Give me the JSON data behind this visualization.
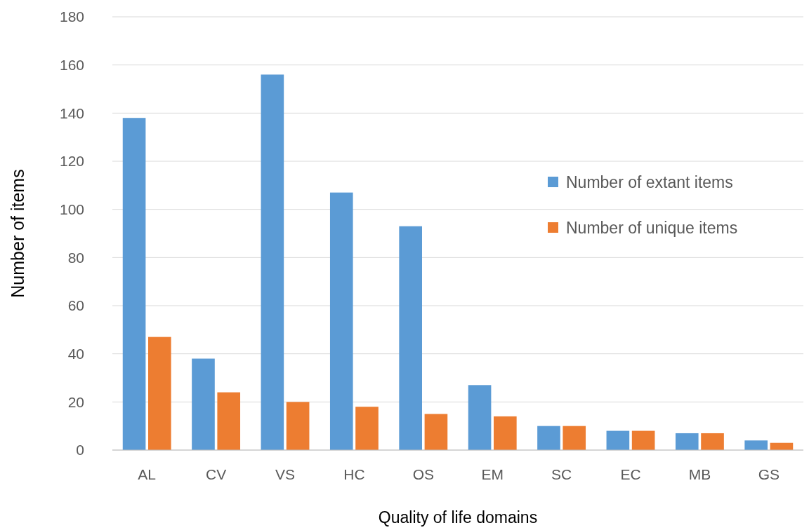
{
  "chart_data": {
    "type": "bar",
    "xlabel": "Quality of life domains",
    "ylabel": "Number of items",
    "categories": [
      "AL",
      "CV",
      "VS",
      "HC",
      "OS",
      "EM",
      "SC",
      "EC",
      "MB",
      "GS"
    ],
    "series": [
      {
        "name": "Number of extant items",
        "color": "#5b9bd5",
        "values": [
          138,
          38,
          156,
          107,
          93,
          27,
          10,
          8,
          7,
          4
        ]
      },
      {
        "name": "Number of unique items",
        "color": "#ed7d31",
        "values": [
          47,
          24,
          20,
          18,
          15,
          14,
          10,
          8,
          7,
          3
        ]
      }
    ],
    "ylim": [
      0,
      180
    ],
    "yticks": [
      0,
      20,
      40,
      60,
      80,
      100,
      120,
      140,
      160,
      180
    ],
    "grid": "y",
    "legend": "right"
  }
}
